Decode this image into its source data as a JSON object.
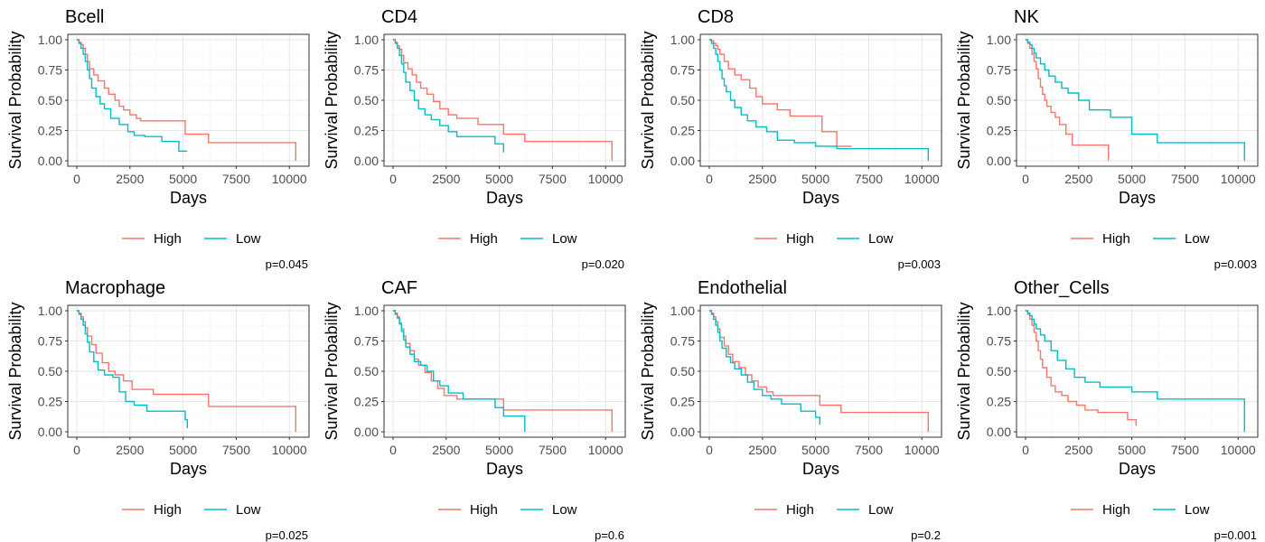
{
  "chart_data": [
    {
      "type": "line",
      "title": "Bcell",
      "xlabel": "Days",
      "ylabel": "Survival Probability",
      "xlim": [
        0,
        10500
      ],
      "ylim": [
        0,
        1.0
      ],
      "x_ticks": [
        0,
        2500,
        5000,
        7500,
        10000
      ],
      "y_ticks": [
        0.0,
        0.25,
        0.5,
        0.75,
        1.0
      ],
      "y_tick_labels": [
        "0.00",
        "0.25",
        "0.50",
        "0.75",
        "1.00"
      ],
      "grid": true,
      "legend_position": "bottom",
      "pvalue": "p=0.045",
      "series": [
        {
          "name": "High",
          "color": "#F8766D",
          "x": [
            0,
            100,
            200,
            300,
            400,
            500,
            600,
            800,
            1000,
            1300,
            1500,
            1800,
            2000,
            2200,
            2500,
            2800,
            3000,
            5100,
            6200,
            10300,
            10300
          ],
          "y": [
            1.0,
            0.98,
            0.96,
            0.93,
            0.88,
            0.82,
            0.76,
            0.71,
            0.66,
            0.6,
            0.55,
            0.5,
            0.45,
            0.42,
            0.38,
            0.35,
            0.33,
            0.22,
            0.15,
            0.15,
            0.0
          ]
        },
        {
          "name": "Low",
          "color": "#00BFC4",
          "x": [
            0,
            100,
            200,
            300,
            400,
            500,
            600,
            700,
            900,
            1100,
            1300,
            1600,
            2000,
            2400,
            2700,
            3200,
            4000,
            4800,
            5200
          ],
          "y": [
            1.0,
            0.97,
            0.93,
            0.88,
            0.82,
            0.75,
            0.68,
            0.6,
            0.53,
            0.47,
            0.43,
            0.35,
            0.3,
            0.24,
            0.21,
            0.2,
            0.16,
            0.08,
            0.08
          ]
        }
      ]
    },
    {
      "type": "line",
      "title": "CD4",
      "xlabel": "Days",
      "ylabel": "Survival Probability",
      "xlim": [
        0,
        10500
      ],
      "ylim": [
        0,
        1.0
      ],
      "x_ticks": [
        0,
        2500,
        5000,
        7500,
        10000
      ],
      "y_ticks": [
        0.0,
        0.25,
        0.5,
        0.75,
        1.0
      ],
      "y_tick_labels": [
        "0.00",
        "0.25",
        "0.50",
        "0.75",
        "1.00"
      ],
      "grid": true,
      "legend_position": "bottom",
      "pvalue": "p=0.020",
      "series": [
        {
          "name": "High",
          "color": "#F8766D",
          "x": [
            0,
            100,
            200,
            300,
            400,
            500,
            700,
            900,
            1100,
            1300,
            1600,
            1900,
            2200,
            2600,
            3000,
            4000,
            5200,
            6200,
            10300,
            10300
          ],
          "y": [
            1.0,
            0.98,
            0.95,
            0.92,
            0.87,
            0.81,
            0.76,
            0.71,
            0.65,
            0.6,
            0.55,
            0.49,
            0.43,
            0.38,
            0.35,
            0.3,
            0.22,
            0.16,
            0.16,
            0.0
          ]
        },
        {
          "name": "Low",
          "color": "#00BFC4",
          "x": [
            0,
            100,
            200,
            300,
            400,
            500,
            600,
            800,
            1000,
            1200,
            1500,
            1800,
            2200,
            2600,
            3000,
            4000,
            4800,
            5200
          ],
          "y": [
            1.0,
            0.97,
            0.93,
            0.87,
            0.8,
            0.73,
            0.65,
            0.58,
            0.5,
            0.43,
            0.38,
            0.34,
            0.29,
            0.24,
            0.2,
            0.2,
            0.14,
            0.07
          ]
        }
      ]
    },
    {
      "type": "line",
      "title": "CD8",
      "xlabel": "Days",
      "ylabel": "Survival Probability",
      "xlim": [
        0,
        10500
      ],
      "ylim": [
        0,
        1.0
      ],
      "x_ticks": [
        0,
        2500,
        5000,
        7500,
        10000
      ],
      "y_ticks": [
        0.0,
        0.25,
        0.5,
        0.75,
        1.0
      ],
      "y_tick_labels": [
        "0.00",
        "0.25",
        "0.50",
        "0.75",
        "1.00"
      ],
      "grid": true,
      "legend_position": "bottom",
      "pvalue": "p=0.003",
      "series": [
        {
          "name": "High",
          "color": "#F8766D",
          "x": [
            0,
            100,
            200,
            300,
            400,
            500,
            700,
            900,
            1200,
            1500,
            1900,
            2200,
            2500,
            3200,
            3800,
            5300,
            6000,
            6200,
            6700
          ],
          "y": [
            1.0,
            0.99,
            0.97,
            0.95,
            0.92,
            0.88,
            0.82,
            0.76,
            0.71,
            0.67,
            0.6,
            0.53,
            0.47,
            0.42,
            0.37,
            0.24,
            0.12,
            0.12,
            0.12
          ]
        },
        {
          "name": "Low",
          "color": "#00BFC4",
          "x": [
            0,
            100,
            200,
            300,
            400,
            500,
            600,
            700,
            800,
            1000,
            1200,
            1500,
            1800,
            2200,
            2700,
            3200,
            4000,
            5000,
            6000,
            10300,
            10300
          ],
          "y": [
            1.0,
            0.97,
            0.93,
            0.88,
            0.82,
            0.75,
            0.68,
            0.62,
            0.57,
            0.5,
            0.44,
            0.38,
            0.33,
            0.28,
            0.24,
            0.17,
            0.15,
            0.12,
            0.1,
            0.1,
            0.0
          ]
        }
      ]
    },
    {
      "type": "line",
      "title": "NK",
      "xlabel": "Days",
      "ylabel": "Survival Probability",
      "xlim": [
        0,
        10500
      ],
      "ylim": [
        0,
        1.0
      ],
      "x_ticks": [
        0,
        2500,
        5000,
        7500,
        10000
      ],
      "y_ticks": [
        0.0,
        0.25,
        0.5,
        0.75,
        1.0
      ],
      "y_tick_labels": [
        "0.00",
        "0.25",
        "0.50",
        "0.75",
        "1.00"
      ],
      "grid": true,
      "legend_position": "bottom",
      "pvalue": "p=0.003",
      "series": [
        {
          "name": "High",
          "color": "#F8766D",
          "x": [
            0,
            100,
            200,
            300,
            400,
            500,
            600,
            700,
            800,
            900,
            1000,
            1200,
            1400,
            1600,
            1900,
            2200,
            2700,
            3900,
            3900
          ],
          "y": [
            1.0,
            0.97,
            0.93,
            0.88,
            0.82,
            0.76,
            0.68,
            0.61,
            0.55,
            0.5,
            0.45,
            0.4,
            0.36,
            0.3,
            0.22,
            0.13,
            0.13,
            0.13,
            0.0
          ]
        },
        {
          "name": "Low",
          "color": "#00BFC4",
          "x": [
            0,
            100,
            200,
            300,
            400,
            500,
            700,
            900,
            1100,
            1400,
            1700,
            2000,
            2500,
            3000,
            4000,
            5000,
            6200,
            10300,
            10300
          ],
          "y": [
            1.0,
            0.98,
            0.96,
            0.93,
            0.89,
            0.85,
            0.8,
            0.75,
            0.7,
            0.65,
            0.6,
            0.56,
            0.5,
            0.42,
            0.36,
            0.22,
            0.15,
            0.15,
            0.0
          ]
        }
      ]
    },
    {
      "type": "line",
      "title": "Macrophage",
      "xlabel": "Days",
      "ylabel": "Survival Probability",
      "xlim": [
        0,
        10500
      ],
      "ylim": [
        0,
        1.0
      ],
      "x_ticks": [
        0,
        2500,
        5000,
        7500,
        10000
      ],
      "y_ticks": [
        0.0,
        0.25,
        0.5,
        0.75,
        1.0
      ],
      "y_tick_labels": [
        "0.00",
        "0.25",
        "0.50",
        "0.75",
        "1.00"
      ],
      "grid": true,
      "legend_position": "bottom",
      "pvalue": "p=0.025",
      "series": [
        {
          "name": "High",
          "color": "#F8766D",
          "x": [
            0,
            100,
            200,
            300,
            400,
            500,
            700,
            900,
            1200,
            1500,
            1800,
            2200,
            2600,
            3600,
            6200,
            10300,
            10300
          ],
          "y": [
            1.0,
            0.98,
            0.95,
            0.91,
            0.86,
            0.79,
            0.72,
            0.65,
            0.57,
            0.5,
            0.47,
            0.42,
            0.35,
            0.31,
            0.21,
            0.21,
            0.0
          ]
        },
        {
          "name": "Low",
          "color": "#00BFC4",
          "x": [
            0,
            100,
            200,
            300,
            400,
            500,
            600,
            800,
            1000,
            1300,
            1700,
            2000,
            2300,
            2700,
            3300,
            5100,
            5200
          ],
          "y": [
            1.0,
            0.97,
            0.93,
            0.88,
            0.81,
            0.74,
            0.66,
            0.58,
            0.51,
            0.47,
            0.45,
            0.33,
            0.25,
            0.22,
            0.17,
            0.1,
            0.03
          ]
        }
      ]
    },
    {
      "type": "line",
      "title": "CAF",
      "xlabel": "Days",
      "ylabel": "Survival Probability",
      "xlim": [
        0,
        10500
      ],
      "ylim": [
        0,
        1.0
      ],
      "x_ticks": [
        0,
        2500,
        5000,
        7500,
        10000
      ],
      "y_ticks": [
        0.0,
        0.25,
        0.5,
        0.75,
        1.0
      ],
      "y_tick_labels": [
        "0.00",
        "0.25",
        "0.50",
        "0.75",
        "1.00"
      ],
      "grid": true,
      "legend_position": "bottom",
      "pvalue": "p=0.6",
      "series": [
        {
          "name": "High",
          "color": "#F8766D",
          "x": [
            0,
            100,
            200,
            300,
            400,
            500,
            600,
            800,
            1000,
            1200,
            1500,
            1800,
            2100,
            2400,
            3000,
            5200,
            10300,
            10300
          ],
          "y": [
            1.0,
            0.98,
            0.95,
            0.9,
            0.85,
            0.79,
            0.73,
            0.67,
            0.6,
            0.55,
            0.49,
            0.42,
            0.36,
            0.3,
            0.27,
            0.18,
            0.18,
            0.0
          ]
        },
        {
          "name": "Low",
          "color": "#00BFC4",
          "x": [
            0,
            100,
            200,
            300,
            400,
            500,
            600,
            800,
            1000,
            1300,
            1600,
            1900,
            2200,
            2600,
            3300,
            4800,
            5200,
            6200,
            6200
          ],
          "y": [
            1.0,
            0.97,
            0.94,
            0.89,
            0.83,
            0.76,
            0.7,
            0.64,
            0.58,
            0.55,
            0.5,
            0.42,
            0.38,
            0.32,
            0.27,
            0.2,
            0.13,
            0.13,
            0.0
          ]
        }
      ]
    },
    {
      "type": "line",
      "title": "Endothelial",
      "xlabel": "Days",
      "ylabel": "Survival Probability",
      "xlim": [
        0,
        10500
      ],
      "ylim": [
        0,
        1.0
      ],
      "x_ticks": [
        0,
        2500,
        5000,
        7500,
        10000
      ],
      "y_ticks": [
        0.0,
        0.25,
        0.5,
        0.75,
        1.0
      ],
      "y_tick_labels": [
        "0.00",
        "0.25",
        "0.50",
        "0.75",
        "1.00"
      ],
      "grid": true,
      "legend_position": "bottom",
      "pvalue": "p=0.2",
      "series": [
        {
          "name": "High",
          "color": "#F8766D",
          "x": [
            0,
            100,
            200,
            300,
            400,
            500,
            700,
            900,
            1100,
            1400,
            1700,
            2000,
            2300,
            2700,
            3000,
            5200,
            6200,
            10300,
            10300
          ],
          "y": [
            1.0,
            0.98,
            0.95,
            0.91,
            0.85,
            0.78,
            0.71,
            0.64,
            0.58,
            0.53,
            0.47,
            0.42,
            0.37,
            0.33,
            0.3,
            0.22,
            0.16,
            0.16,
            0.0
          ]
        },
        {
          "name": "Low",
          "color": "#00BFC4",
          "x": [
            0,
            100,
            200,
            300,
            400,
            500,
            600,
            800,
            1000,
            1200,
            1500,
            1800,
            2100,
            2500,
            2900,
            3400,
            4300,
            5000,
            5200
          ],
          "y": [
            1.0,
            0.97,
            0.93,
            0.88,
            0.82,
            0.75,
            0.69,
            0.62,
            0.57,
            0.52,
            0.47,
            0.41,
            0.35,
            0.3,
            0.27,
            0.23,
            0.17,
            0.12,
            0.06
          ]
        }
      ]
    },
    {
      "type": "line",
      "title": "Other_Cells",
      "xlabel": "Days",
      "ylabel": "Survival Probability",
      "xlim": [
        0,
        10500
      ],
      "ylim": [
        0,
        1.0
      ],
      "x_ticks": [
        0,
        2500,
        5000,
        7500,
        10000
      ],
      "y_ticks": [
        0.0,
        0.25,
        0.5,
        0.75,
        1.0
      ],
      "y_tick_labels": [
        "0.00",
        "0.25",
        "0.50",
        "0.75",
        "1.00"
      ],
      "grid": true,
      "legend_position": "bottom",
      "pvalue": "p=0.001",
      "series": [
        {
          "name": "High",
          "color": "#F8766D",
          "x": [
            0,
            100,
            200,
            300,
            400,
            500,
            600,
            700,
            800,
            1000,
            1200,
            1400,
            1700,
            2000,
            2400,
            2800,
            3400,
            4800,
            5200,
            5200
          ],
          "y": [
            1.0,
            0.97,
            0.93,
            0.88,
            0.82,
            0.75,
            0.67,
            0.6,
            0.53,
            0.45,
            0.38,
            0.33,
            0.3,
            0.25,
            0.22,
            0.18,
            0.16,
            0.1,
            0.1,
            0.05
          ]
        },
        {
          "name": "Low",
          "color": "#00BFC4",
          "x": [
            0,
            100,
            200,
            300,
            400,
            500,
            700,
            900,
            1200,
            1500,
            1900,
            2300,
            2800,
            3500,
            5000,
            6200,
            10300,
            10300
          ],
          "y": [
            1.0,
            0.98,
            0.96,
            0.93,
            0.89,
            0.85,
            0.8,
            0.75,
            0.67,
            0.59,
            0.52,
            0.45,
            0.41,
            0.37,
            0.33,
            0.27,
            0.18,
            0.0
          ]
        }
      ]
    }
  ]
}
